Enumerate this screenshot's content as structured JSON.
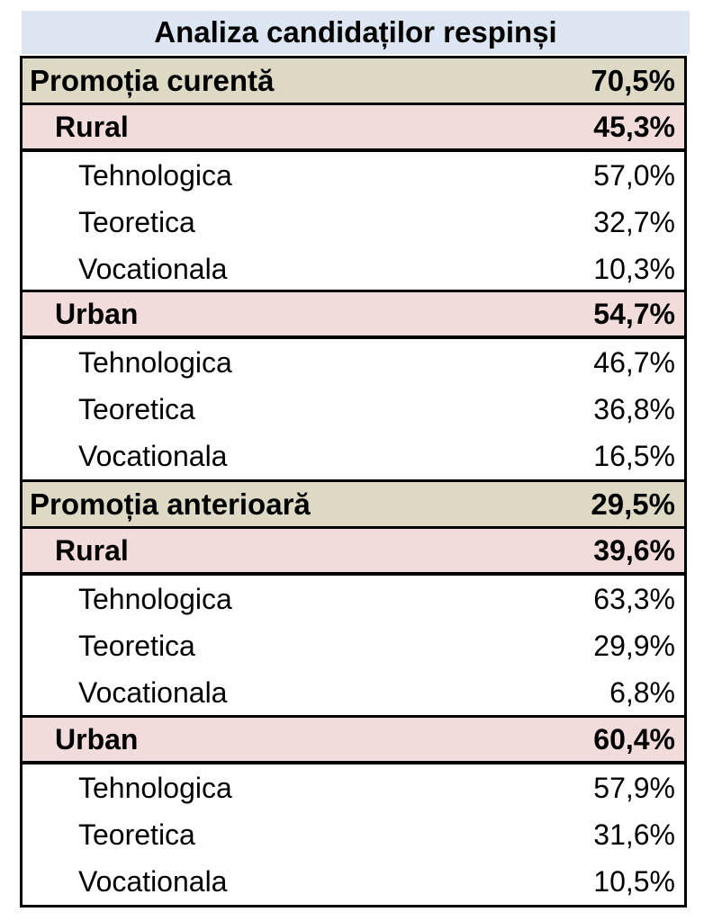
{
  "title": "Analiza candidaților respinși",
  "groups": [
    {
      "label": "Promoția curentă",
      "value": "70,5%",
      "areas": [
        {
          "label": "Rural",
          "value": "45,3%",
          "items": [
            {
              "label": "Tehnologica",
              "value": "57,0%"
            },
            {
              "label": "Teoretica",
              "value": "32,7%"
            },
            {
              "label": "Vocationala",
              "value": "10,3%"
            }
          ]
        },
        {
          "label": "Urban",
          "value": "54,7%",
          "items": [
            {
              "label": "Tehnologica",
              "value": "46,7%"
            },
            {
              "label": "Teoretica",
              "value": "36,8%"
            },
            {
              "label": "Vocationala",
              "value": "16,5%"
            }
          ]
        }
      ]
    },
    {
      "label": "Promoția anterioară",
      "value": "29,5%",
      "areas": [
        {
          "label": "Rural",
          "value": "39,6%",
          "items": [
            {
              "label": "Tehnologica",
              "value": "63,3%"
            },
            {
              "label": "Teoretica",
              "value": "29,9%"
            },
            {
              "label": "Vocationala",
              "value": "6,8%"
            }
          ]
        },
        {
          "label": "Urban",
          "value": "60,4%",
          "items": [
            {
              "label": "Tehnologica",
              "value": "57,9%"
            },
            {
              "label": "Teoretica",
              "value": "31,6%"
            },
            {
              "label": "Vocationala",
              "value": "10,5%"
            }
          ]
        }
      ]
    }
  ]
}
